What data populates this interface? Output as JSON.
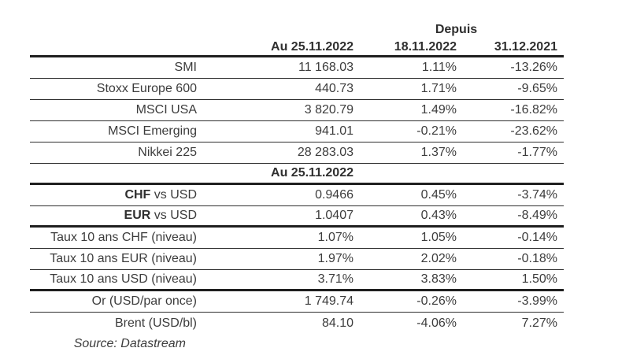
{
  "colors": {
    "text": "#3c3c3c",
    "header_text": "#2f2f2f",
    "thick_rule": "#1f1f1f",
    "thin_rule": "#2e2e2e",
    "background": "#ffffff"
  },
  "table": {
    "depuis_label": "Depuis",
    "headers": {
      "col2": "Au 25.11.2022",
      "col3": "18.11.2022",
      "col4": "31.12.2021"
    },
    "subheader": "Au 25.11.2022",
    "source": "Source: Datastream",
    "rows": [
      {
        "label_bold": "",
        "label_rest": "SMI",
        "v1": "11 168.03",
        "v2": "1.11%",
        "v3": "-13.26%"
      },
      {
        "label_bold": "",
        "label_rest": "Stoxx Europe 600",
        "v1": "440.73",
        "v2": "1.71%",
        "v3": "-9.65%"
      },
      {
        "label_bold": "",
        "label_rest": "MSCI USA",
        "v1": "3 820.79",
        "v2": "1.49%",
        "v3": "-16.82%"
      },
      {
        "label_bold": "",
        "label_rest": "MSCI Emerging",
        "v1": "941.01",
        "v2": "-0.21%",
        "v3": "-23.62%"
      },
      {
        "label_bold": "",
        "label_rest": "Nikkei 225",
        "v1": "28 283.03",
        "v2": "1.37%",
        "v3": "-1.77%"
      },
      {
        "label_bold": "CHF",
        "label_rest": " vs USD",
        "v1": "0.9466",
        "v2": "0.45%",
        "v3": "-3.74%"
      },
      {
        "label_bold": "EUR",
        "label_rest": " vs USD",
        "v1": "1.0407",
        "v2": "0.43%",
        "v3": "-8.49%"
      },
      {
        "label_bold": "",
        "label_rest": "Taux 10 ans CHF (niveau)",
        "v1": "1.07%",
        "v2": "1.05%",
        "v3": "-0.14%"
      },
      {
        "label_bold": "",
        "label_rest": "Taux 10 ans EUR (niveau)",
        "v1": "1.97%",
        "v2": "2.02%",
        "v3": "-0.18%"
      },
      {
        "label_bold": "",
        "label_rest": "Taux 10 ans USD (niveau)",
        "v1": "3.71%",
        "v2": "3.83%",
        "v3": "1.50%"
      },
      {
        "label_bold": "",
        "label_rest": "Or (USD/par once)",
        "v1": "1 749.74",
        "v2": "-0.26%",
        "v3": "-3.99%"
      },
      {
        "label_bold": "",
        "label_rest": "Brent (USD/bl)",
        "v1": "84.10",
        "v2": "-4.06%",
        "v3": "7.27%"
      }
    ]
  }
}
